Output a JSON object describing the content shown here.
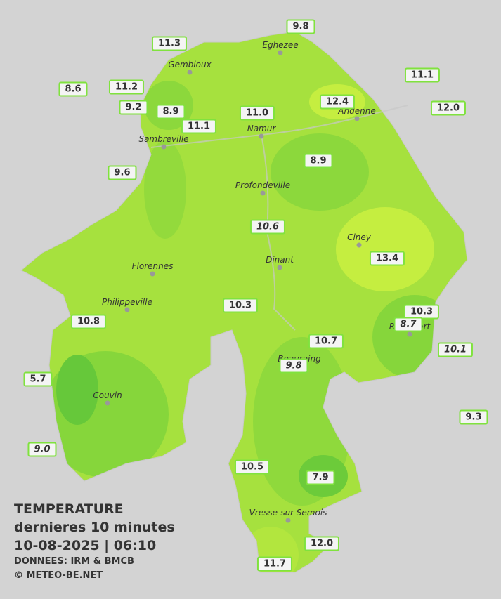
{
  "title": {
    "line1": "TEMPERATURE",
    "line2": "dernieres 10 minutes",
    "line3": "10-08-2025  |  06:10",
    "line4": "DONNEES: IRM & BMCB",
    "line5": "© METEO-BE.NET"
  },
  "cities": [
    "Eghezee",
    "Gembloux",
    "Andenne",
    "Sambreville",
    "Namur",
    "Profondeville",
    "Ciney",
    "Dinant",
    "Florennes",
    "Philippeville",
    "Rochefort",
    "Beauraing",
    "Couvin",
    "Vresse-sur-Semois"
  ],
  "stations": [
    {
      "text": "9.8",
      "italic": false
    },
    {
      "text": "11.3",
      "italic": false
    },
    {
      "text": "11.1",
      "italic": false
    },
    {
      "text": "8.6",
      "italic": false
    },
    {
      "text": "11.2",
      "italic": false
    },
    {
      "text": "12.4",
      "italic": false
    },
    {
      "text": "12.0",
      "italic": false
    },
    {
      "text": "9.2",
      "italic": false
    },
    {
      "text": "8.9",
      "italic": false
    },
    {
      "text": "11.0",
      "italic": false
    },
    {
      "text": "11.1",
      "italic": false
    },
    {
      "text": "8.9",
      "italic": false
    },
    {
      "text": "9.6",
      "italic": false
    },
    {
      "text": "10.6",
      "italic": true
    },
    {
      "text": "13.4",
      "italic": false
    },
    {
      "text": "10.3",
      "italic": false
    },
    {
      "text": "10.3",
      "italic": false
    },
    {
      "text": "8.7",
      "italic": true
    },
    {
      "text": "10.8",
      "italic": false
    },
    {
      "text": "10.7",
      "italic": false
    },
    {
      "text": "10.1",
      "italic": true
    },
    {
      "text": "9.8",
      "italic": true
    },
    {
      "text": "5.7",
      "italic": false
    },
    {
      "text": "9.3",
      "italic": false
    },
    {
      "text": "9.0",
      "italic": true
    },
    {
      "text": "10.5",
      "italic": false
    },
    {
      "text": "7.9",
      "italic": false
    },
    {
      "text": "12.0",
      "italic": false
    },
    {
      "text": "11.7",
      "italic": false
    }
  ]
}
